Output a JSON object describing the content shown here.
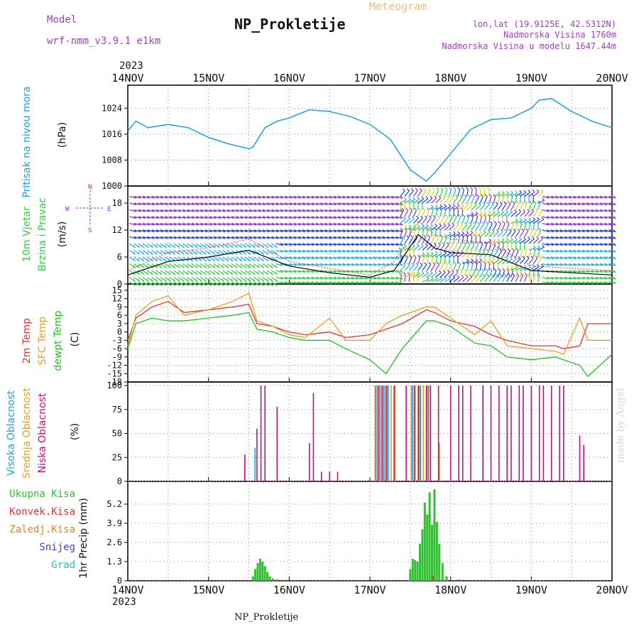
{
  "header": {
    "model_label": "Model",
    "model_name": "wrf-nmm_v3.9.1  e1km",
    "meteogram_label": "Meteogram",
    "title": "NP_Prokletije",
    "coords": "lon,lat (19.9125E, 42.5312N)",
    "elevation": "Nadmorska Visina 1760m",
    "elevation_model": "Nadmorska Visina u modelu 1647.44m",
    "year_top": "2023",
    "year_bottom": "2023",
    "bottom_title": "NP_Prokletije",
    "credit": "made by Angel"
  },
  "colors": {
    "pressure": "#1ea0e0",
    "temp2m": "#e83030",
    "sfc": "#e0a020",
    "dew": "#20c020",
    "high_cloud": "#20a0e0",
    "mid_cloud": "#e0a020",
    "low_cloud": "#c01080",
    "total_precip": "#30c030",
    "conv_precip": "#e83030",
    "frozen_precip": "#f08020",
    "snow": "#4040e0",
    "hail": "#20c0c0",
    "wind_purple": "#9030d0",
    "wind_blue": "#2040e0",
    "wind_cyan": "#20b0e0",
    "wind_green": "#30d040",
    "wind_yellow": "#e0d020"
  },
  "chart_data": [
    {
      "type": "line",
      "panel": "pressure",
      "ylabel": [
        "Pritisak na nivou mora",
        "(hPa)"
      ],
      "x_ticks": [
        "14NOV",
        "15NOV",
        "16NOV",
        "17NOV",
        "18NOV",
        "19NOV",
        "20NOV"
      ],
      "ylim": [
        1000,
        1030
      ],
      "yticks": [
        1000,
        1008,
        1016,
        1024
      ],
      "x": [
        0,
        0.1,
        0.25,
        0.5,
        0.75,
        1.0,
        1.25,
        1.5,
        1.55,
        1.7,
        1.85,
        2.0,
        2.25,
        2.5,
        2.75,
        3.0,
        3.25,
        3.5,
        3.7,
        3.8,
        4.0,
        4.25,
        4.5,
        4.75,
        5.0,
        5.1,
        5.25,
        5.5,
        5.75,
        6.0
      ],
      "series": [
        {
          "name": "",
          "values": [
            1017,
            1020,
            1018,
            1019,
            1018,
            1015,
            1013,
            1011.5,
            1012,
            1018,
            1020,
            1021,
            1023.5,
            1023,
            1021.5,
            1019,
            1014.5,
            1005,
            1001.5,
            1004,
            1010,
            1017.5,
            1020.5,
            1021,
            1024,
            1026.5,
            1027,
            1023,
            1020,
            1018
          ]
        }
      ]
    },
    {
      "type": "wind_barbs",
      "panel": "wind",
      "ylabel": [
        "10m Vjetar",
        "Brzina i Pravac",
        "(m/s)"
      ],
      "compass": {
        "n": "N",
        "s": "S",
        "e": "E",
        "w": "W"
      },
      "ylim": [
        0,
        21
      ],
      "yticks": [
        0,
        6,
        12,
        18
      ],
      "x": [
        0,
        0.5,
        1.0,
        1.5,
        2.0,
        2.5,
        3.0,
        3.3,
        3.6,
        3.8,
        4.0,
        4.5,
        5.0,
        5.5,
        6.0
      ],
      "speed": [
        2,
        5,
        6,
        7.5,
        4,
        2.5,
        1.5,
        3,
        11,
        8,
        7,
        6.5,
        3,
        2.5,
        2
      ],
      "gust": [
        3,
        7,
        8,
        10,
        5,
        3.5,
        2,
        5,
        14,
        11,
        10,
        9,
        4,
        3.5,
        3
      ]
    },
    {
      "type": "line",
      "panel": "temperature",
      "ylabel": [
        "2m Temp",
        "SFC Temp",
        "dewpt Temp",
        "(C)"
      ],
      "ylim": [
        -18,
        16
      ],
      "yticks": [
        -18,
        -15,
        -12,
        -9,
        -6,
        -3,
        0,
        3,
        6,
        9,
        12,
        15
      ],
      "x": [
        0,
        0.1,
        0.3,
        0.5,
        0.7,
        1.0,
        1.3,
        1.5,
        1.6,
        1.8,
        2.0,
        2.2,
        2.5,
        2.7,
        3.0,
        3.2,
        3.4,
        3.7,
        3.8,
        4.0,
        4.3,
        4.5,
        4.7,
        5.0,
        5.3,
        5.4,
        5.6,
        5.7,
        6.0
      ],
      "series": [
        {
          "name": "2m Temp",
          "values": [
            -3,
            5,
            9,
            11,
            7,
            8,
            9,
            10,
            3,
            2,
            0,
            -1,
            0,
            -2,
            -1,
            1,
            3,
            8,
            7,
            4,
            2,
            -1,
            -3,
            -5,
            -5,
            -6,
            -5,
            3,
            3
          ]
        },
        {
          "name": "SFC Temp",
          "values": [
            -5,
            6,
            11,
            13,
            6,
            8,
            11,
            14,
            4,
            2,
            -1,
            -2,
            5,
            -3,
            -3,
            3,
            6,
            9,
            9,
            5,
            -1,
            4,
            -5,
            -6,
            -7,
            -8,
            5,
            -3,
            -3
          ]
        },
        {
          "name": "dewpt Temp",
          "values": [
            -6,
            3,
            5,
            4,
            4,
            5,
            6,
            7,
            1,
            0,
            -2,
            -3,
            -3,
            -6,
            -10,
            -15,
            -6,
            4,
            4,
            2,
            -4,
            -5,
            -9,
            -10,
            -9,
            -10,
            -12,
            -16,
            -8
          ]
        }
      ]
    },
    {
      "type": "bar",
      "panel": "clouds",
      "ylabel": [
        "Visoka Oblacnost",
        "Srednja Oblacnost",
        "Niska Oblacnost",
        "(%)"
      ],
      "ylim": [
        0,
        100
      ],
      "yticks": [
        0,
        25,
        50,
        75,
        100
      ],
      "low_cloud": {
        "x": [
          1.45,
          1.6,
          1.65,
          1.7,
          1.85,
          2.25,
          2.3,
          2.4,
          2.5,
          2.6,
          3.1,
          3.15,
          3.2,
          3.3,
          3.45,
          3.55,
          3.6,
          3.7,
          3.75,
          3.85,
          4.0,
          4.1,
          4.15,
          4.25,
          4.4,
          4.5,
          4.6,
          4.7,
          4.75,
          4.85,
          4.9,
          5.0,
          5.1,
          5.15,
          5.25,
          5.35,
          5.4,
          5.6,
          5.65
        ],
        "values": [
          28,
          55,
          100,
          100,
          78,
          40,
          92,
          10,
          10,
          10,
          100,
          100,
          100,
          100,
          100,
          100,
          100,
          100,
          100,
          100,
          100,
          100,
          100,
          100,
          100,
          100,
          100,
          100,
          100,
          100,
          100,
          100,
          100,
          100,
          100,
          100,
          100,
          48,
          38
        ]
      },
      "mid_cloud": {
        "x": [
          3.05,
          3.1,
          3.15,
          3.2,
          3.25,
          3.3,
          3.5,
          3.55,
          3.6,
          3.65,
          3.7,
          3.85
        ],
        "values": [
          100,
          100,
          100,
          100,
          100,
          100,
          100,
          100,
          100,
          100,
          100,
          40
        ]
      },
      "high_cloud": {
        "x": [
          1.55,
          3.05,
          3.1,
          3.15,
          3.2,
          3.5,
          3.6,
          3.7
        ],
        "values": [
          35,
          100,
          100,
          100,
          100,
          100,
          100,
          100
        ]
      }
    },
    {
      "type": "bar",
      "panel": "precipitation",
      "ylabel": [
        "1hr Precip (mm)"
      ],
      "legend": [
        "Ukupna Kisa",
        "Konvek.Kisa",
        "Zaledj.Kisa",
        "Snijeg",
        "Grad"
      ],
      "ylim": [
        0,
        6.5
      ],
      "yticks": [
        0,
        1.3,
        2.6,
        3.9,
        5.2
      ],
      "x": [
        1.55,
        1.58,
        1.61,
        1.64,
        1.67,
        1.7,
        1.73,
        1.76,
        1.8,
        1.85,
        3.5,
        3.53,
        3.56,
        3.59,
        3.62,
        3.65,
        3.68,
        3.71,
        3.74,
        3.77,
        3.8,
        3.83,
        3.86,
        3.9,
        3.95,
        4.1,
        5.0,
        5.1
      ],
      "values": [
        0.3,
        0.8,
        1.2,
        1.5,
        1.3,
        1.0,
        0.6,
        0.3,
        0.15,
        0.1,
        0.8,
        1.5,
        1.4,
        1.3,
        2.5,
        3.5,
        5.3,
        4.5,
        6.0,
        3.8,
        6.2,
        4.0,
        2.5,
        1.2,
        0.3,
        0.1,
        0.05,
        0.05
      ]
    }
  ],
  "x_axis": {
    "ticks": [
      "14NOV",
      "15NOV",
      "16NOV",
      "17NOV",
      "18NOV",
      "19NOV",
      "20NOV"
    ]
  }
}
